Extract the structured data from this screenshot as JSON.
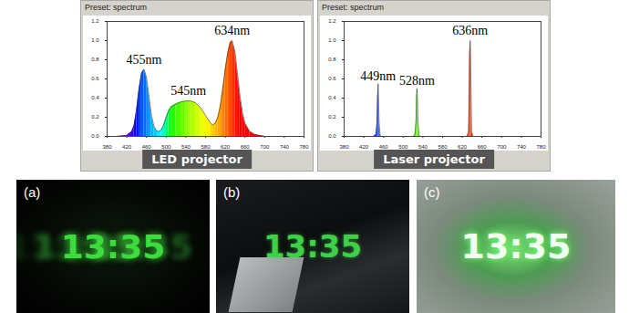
{
  "chart_data": [
    {
      "type": "area",
      "title": "LED projector",
      "subtitle": "Preset: spectrum",
      "x": [
        380,
        400,
        420,
        430,
        435,
        440,
        445,
        450,
        455,
        460,
        465,
        470,
        475,
        480,
        485,
        490,
        495,
        500,
        505,
        510,
        520,
        530,
        540,
        545,
        550,
        560,
        570,
        580,
        590,
        595,
        600,
        605,
        610,
        615,
        620,
        625,
        630,
        634,
        640,
        645,
        650,
        655,
        660,
        670,
        680,
        700,
        780
      ],
      "values": [
        0,
        0,
        0.01,
        0.05,
        0.12,
        0.28,
        0.5,
        0.66,
        0.7,
        0.62,
        0.42,
        0.22,
        0.11,
        0.06,
        0.05,
        0.07,
        0.12,
        0.2,
        0.27,
        0.31,
        0.34,
        0.36,
        0.37,
        0.37,
        0.37,
        0.35,
        0.3,
        0.22,
        0.14,
        0.12,
        0.14,
        0.2,
        0.32,
        0.5,
        0.7,
        0.87,
        0.98,
        1.0,
        0.88,
        0.65,
        0.42,
        0.25,
        0.14,
        0.05,
        0.02,
        0,
        0
      ],
      "annotations": [
        {
          "x": 455,
          "y": 0.8,
          "text": "455nm"
        },
        {
          "x": 545,
          "y": 0.48,
          "text": "545nm"
        },
        {
          "x": 634,
          "y": 1.1,
          "text": "634nm"
        }
      ],
      "xlim": [
        380,
        780
      ],
      "xticks": [
        380,
        420,
        460,
        500,
        540,
        580,
        620,
        660,
        700,
        740,
        780
      ],
      "ylim": [
        0,
        1.2
      ],
      "yticks": [
        0,
        0.2,
        0.4,
        0.6,
        0.8,
        1,
        1.2
      ],
      "grid": false
    },
    {
      "type": "area",
      "title": "Laser projector",
      "subtitle": "Preset: spectrum",
      "x": [
        380,
        440,
        445,
        447,
        448,
        449,
        450,
        451,
        453,
        455,
        520,
        524,
        526,
        527,
        528,
        529,
        530,
        532,
        534,
        630,
        633,
        634,
        635,
        636,
        637,
        638,
        639,
        642,
        780
      ],
      "values": [
        0,
        0,
        0.02,
        0.15,
        0.4,
        0.55,
        0.4,
        0.15,
        0.02,
        0,
        0,
        0.02,
        0.15,
        0.38,
        0.5,
        0.38,
        0.15,
        0.02,
        0,
        0,
        0.05,
        0.4,
        0.85,
        1.0,
        0.85,
        0.4,
        0.05,
        0,
        0
      ],
      "annotations": [
        {
          "x": 449,
          "y": 0.63,
          "text": "449nm"
        },
        {
          "x": 528,
          "y": 0.58,
          "text": "528nm"
        },
        {
          "x": 636,
          "y": 1.1,
          "text": "636nm"
        }
      ],
      "xlim": [
        380,
        780
      ],
      "xticks": [
        380,
        420,
        460,
        500,
        540,
        580,
        620,
        660,
        700,
        740,
        780
      ],
      "ylim": [
        0,
        1.2
      ],
      "yticks": [
        0,
        0.2,
        0.4,
        0.6,
        0.8,
        1,
        1.2
      ],
      "grid": false
    }
  ],
  "photos": [
    {
      "label": "(a)",
      "text": "13:35"
    },
    {
      "label": "(b)",
      "text": "13:35"
    },
    {
      "label": "(c)",
      "text": "13:35"
    }
  ]
}
